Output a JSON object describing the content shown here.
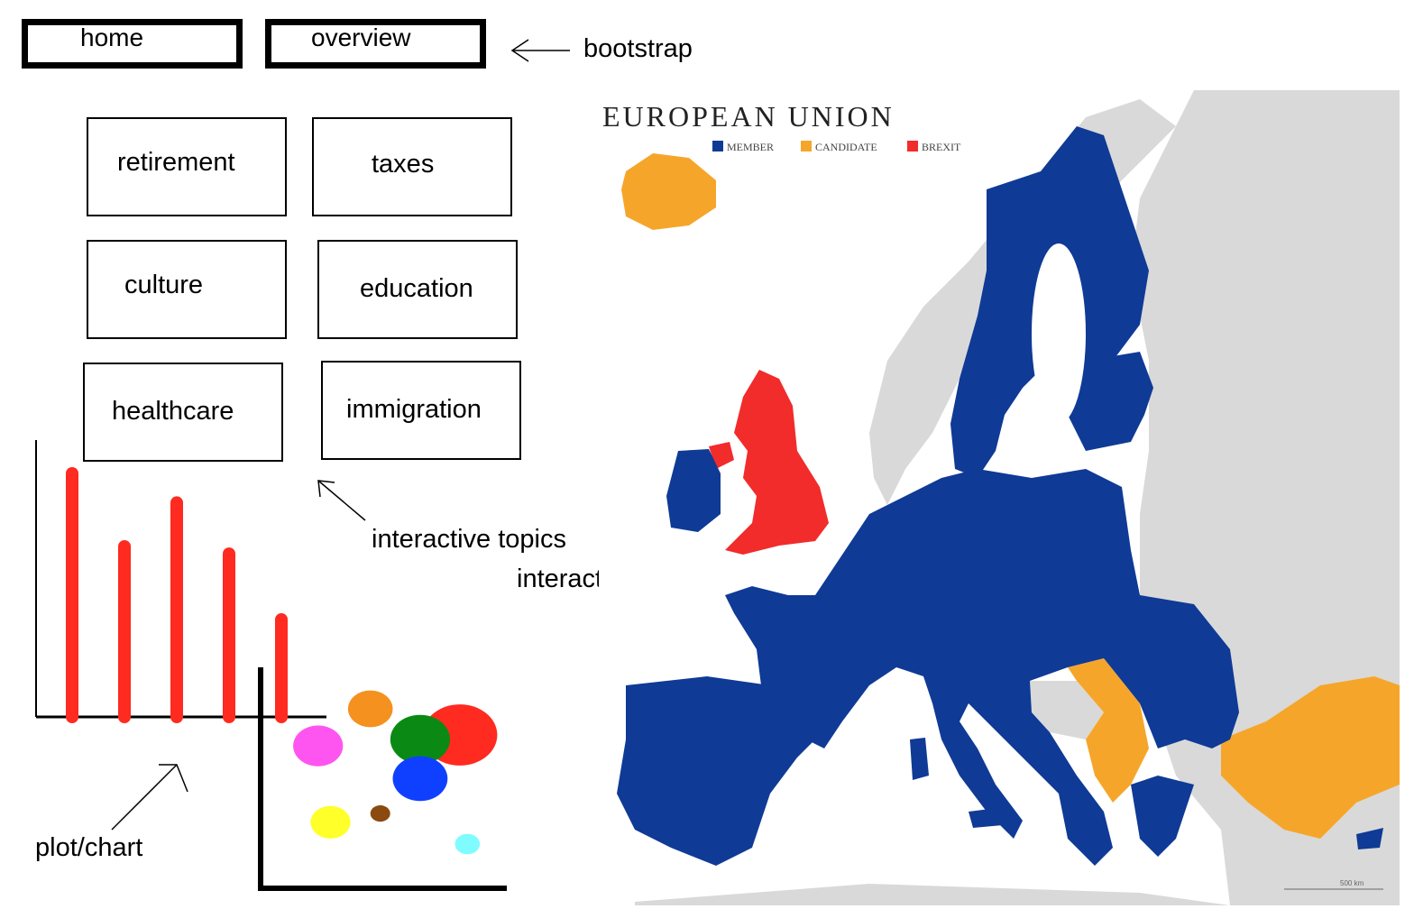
{
  "nav": {
    "home_label": "home",
    "overview_label": "overview"
  },
  "topics": [
    {
      "label": "retirement"
    },
    {
      "label": "taxes"
    },
    {
      "label": "culture"
    },
    {
      "label": "education"
    },
    {
      "label": "healthcare"
    },
    {
      "label": "immigration"
    }
  ],
  "annotations": {
    "bootstrap": "bootstrap",
    "interactive_topics": "interactive topics",
    "interactive_map": "interactive map",
    "plot_chart": "plot/chart"
  },
  "map": {
    "title": "EUROPEAN UNION",
    "legend": [
      {
        "label": "MEMBER",
        "color": "#0f3a96"
      },
      {
        "label": "CANDIDATE",
        "color": "#f5a62a"
      },
      {
        "label": "BREXIT",
        "color": "#f22b2b"
      }
    ],
    "land_color": "#d9d9d9",
    "scale_label": "500 km"
  },
  "chart_data": [
    {
      "type": "bar",
      "values": [
        100,
        70,
        88,
        67,
        40
      ],
      "ylim": [
        0,
        100
      ],
      "bar_color": "#ff2a20"
    },
    {
      "type": "scatter",
      "xlim": [
        0,
        100
      ],
      "ylim": [
        0,
        100
      ],
      "points": [
        {
          "x": 43,
          "y": 81,
          "r": 9,
          "color": "#f5911f"
        },
        {
          "x": 22,
          "y": 64,
          "r": 10,
          "color": "#ff55f0"
        },
        {
          "x": 79,
          "y": 69,
          "r": 15,
          "color": "#ff2a20"
        },
        {
          "x": 63,
          "y": 67,
          "r": 12,
          "color": "#0a8a14"
        },
        {
          "x": 63,
          "y": 49,
          "r": 11,
          "color": "#1040ff"
        },
        {
          "x": 27,
          "y": 29,
          "r": 8,
          "color": "#ffff2a"
        },
        {
          "x": 47,
          "y": 33,
          "r": 4,
          "color": "#8a4a10"
        },
        {
          "x": 82,
          "y": 19,
          "r": 5,
          "color": "#7ffcff"
        }
      ]
    }
  ]
}
